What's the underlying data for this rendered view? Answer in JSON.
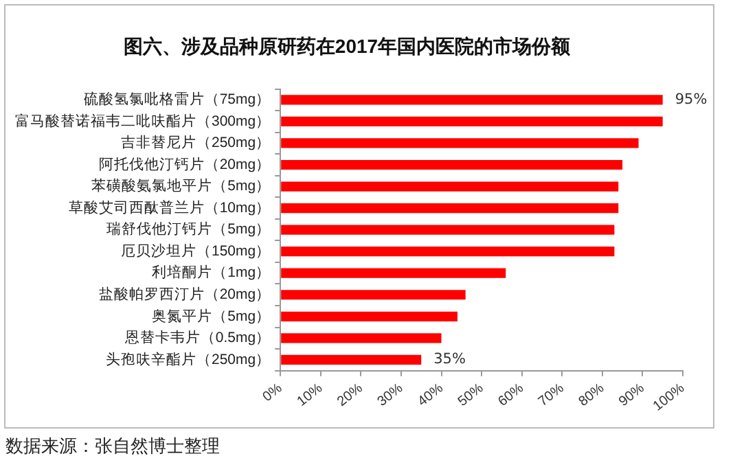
{
  "chart_data": {
    "type": "bar",
    "orientation": "horizontal",
    "title": "图六、涉及品种原研药在2017年国内医院的市场份额",
    "categories": [
      "硫酸氢氯吡格雷片（75mg）",
      "富马酸替诺福韦二吡呋酯片（300mg）",
      "吉非替尼片（250mg）",
      "阿托伐他汀钙片（20mg）",
      "苯磺酸氨氯地平片（5mg）",
      "草酸艾司西酞普兰片（10mg）",
      "瑞舒伐他汀钙片（5mg）",
      "厄贝沙坦片（150mg）",
      "利培酮片（1mg）",
      "盐酸帕罗西汀片（20mg）",
      "奥氮平片（5mg）",
      "恩替卡韦片（0.5mg）",
      "头孢呋辛酯片（250mg）"
    ],
    "values": [
      95,
      95,
      89,
      85,
      84,
      84,
      83,
      83,
      56,
      46,
      44,
      40,
      35
    ],
    "value_labels": [
      "95%",
      null,
      null,
      null,
      null,
      null,
      null,
      null,
      null,
      null,
      null,
      null,
      "35%"
    ],
    "color": "#ff0000",
    "xlim": [
      0,
      100
    ],
    "xticks": [
      {
        "value": 0,
        "label": "0%"
      },
      {
        "value": 10,
        "label": "10%"
      },
      {
        "value": 20,
        "label": "20%"
      },
      {
        "value": 30,
        "label": "30%"
      },
      {
        "value": 40,
        "label": "40%"
      },
      {
        "value": 50,
        "label": "50%"
      },
      {
        "value": 60,
        "label": "60%"
      },
      {
        "value": 70,
        "label": "70%"
      },
      {
        "value": 80,
        "label": "80%"
      },
      {
        "value": 90,
        "label": "90%"
      },
      {
        "value": 100,
        "label": "100%"
      }
    ],
    "grid": false,
    "legend": false,
    "annotations": [
      "数据来源：张自然博士整理"
    ]
  }
}
